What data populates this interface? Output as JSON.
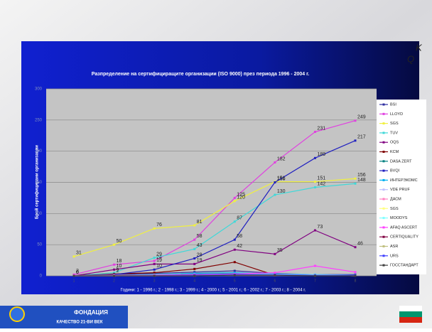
{
  "chart_data": {
    "type": "line",
    "title": "Разпределение на сертифициращите организации (ISO 9000) през периода 1996 - 2004 г.",
    "y_label": "Брой сертифицирани организации",
    "footnote": "Години: 1 - 1996 г.; 2 - 1998 г.; 3 - 1999 г.; 4 - 2000 г.; 5 - 2001 г.; 6 - 2002 г.; 7 - 2003 г.; 8 - 2004 г.",
    "categories": [
      "1",
      "2",
      "3",
      "4",
      "5",
      "6",
      "7",
      "8"
    ],
    "ylim": [
      0,
      300
    ],
    "yticks": [
      0,
      50,
      100,
      150,
      200,
      250,
      300
    ],
    "grid": true,
    "series": [
      {
        "name": "BSI",
        "color": "#3030a0",
        "values": [
          0,
          2,
          4,
          6,
          8,
          4,
          2,
          2
        ]
      },
      {
        "name": "LLOYD",
        "color": "#e040e0",
        "values": [
          2,
          18,
          24,
          58,
          125,
          182,
          231,
          249
        ],
        "data_labels": true
      },
      {
        "name": "SGS",
        "color": "#f0f040",
        "values": [
          31,
          50,
          76,
          81,
          120,
          151,
          151,
          156
        ],
        "data_labels": true
      },
      {
        "name": "TUV",
        "color": "#40d8d8",
        "values": [
          0,
          5,
          29,
          43,
          87,
          130,
          142,
          148
        ],
        "data_labels": true
      },
      {
        "name": "OQS",
        "color": "#800080",
        "values": [
          0,
          10,
          19,
          19,
          42,
          35,
          73,
          46
        ],
        "data_labels": true
      },
      {
        "name": "KCM",
        "color": "#800000",
        "values": [
          0,
          3,
          5,
          11,
          22,
          1,
          1,
          0
        ]
      },
      {
        "name": "DASA ZERT",
        "color": "#008080",
        "values": [
          0,
          1,
          2,
          3,
          4,
          2,
          1,
          0
        ]
      },
      {
        "name": "BVQI",
        "color": "#2020c0",
        "values": [
          0,
          2,
          10,
          28,
          58,
          150,
          189,
          217
        ],
        "data_labels": true
      },
      {
        "name": "ИНТЕРЭКОМС",
        "color": "#00b0f0",
        "values": [
          0,
          1,
          2,
          4,
          5,
          3,
          2,
          1
        ]
      },
      {
        "name": "VDE PRUF",
        "color": "#c0c0ff",
        "values": [
          0,
          0,
          1,
          2,
          2,
          1,
          1,
          0
        ]
      },
      {
        "name": "ДАСМ",
        "color": "#ff80c0",
        "values": [
          0,
          1,
          1,
          2,
          3,
          2,
          1,
          0
        ]
      },
      {
        "name": "SGS",
        "color": "#ffff80",
        "values": [
          0,
          0,
          1,
          1,
          2,
          1,
          1,
          0
        ]
      },
      {
        "name": "MOODYS",
        "color": "#80ffff",
        "values": [
          0,
          0,
          0,
          1,
          2,
          3,
          2,
          1
        ]
      },
      {
        "name": "AFAQ ASCERT",
        "color": "#ff40ff",
        "values": [
          0,
          0,
          1,
          2,
          3,
          5,
          16,
          6
        ]
      },
      {
        "name": "CERTIQUALITY",
        "color": "#800040",
        "values": [
          0,
          0,
          0,
          1,
          1,
          1,
          1,
          0
        ]
      },
      {
        "name": "ASR",
        "color": "#c0c080",
        "values": [
          0,
          0,
          0,
          0,
          1,
          1,
          1,
          0
        ]
      },
      {
        "name": "URS",
        "color": "#4040ff",
        "values": [
          0,
          0,
          0,
          1,
          2,
          2,
          1,
          1
        ]
      },
      {
        "name": "ГОССТАНДАРТ",
        "color": "#404040",
        "values": [
          0,
          0,
          0,
          0,
          1,
          1,
          0,
          0
        ]
      }
    ]
  },
  "branding": {
    "foundation": "ФОНДАЦИЯ",
    "foundation_sub": "КАЧЕСТВО 21-ВИ ВЕК",
    "logo_k": "K",
    "logo_q": "Q"
  }
}
